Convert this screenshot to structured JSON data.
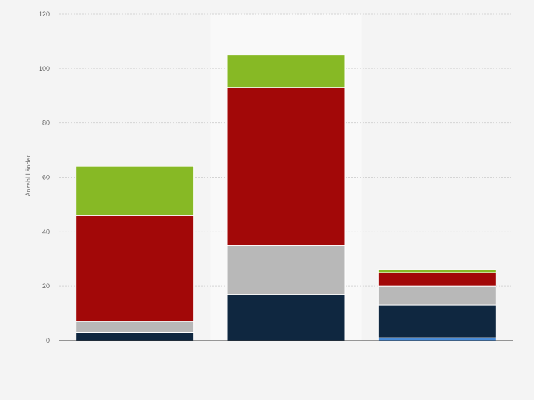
{
  "chart_data": {
    "type": "bar",
    "stacked": true,
    "title": "",
    "xlabel": "",
    "ylabel": "Anzahl Länder",
    "ylim": [
      0,
      120
    ],
    "yticks": [
      0,
      20,
      40,
      60,
      80,
      100,
      120
    ],
    "grid": true,
    "highlighted_category_index": 1,
    "categories": [
      "",
      "",
      ""
    ],
    "series": [
      {
        "color": "#4a8cd8",
        "values": [
          0,
          0,
          1
        ]
      },
      {
        "color": "#0f2740",
        "values": [
          3,
          17,
          12
        ]
      },
      {
        "color": "#b8b8b8",
        "values": [
          4,
          18,
          7
        ]
      },
      {
        "color": "#a20808",
        "values": [
          39,
          58,
          5
        ]
      },
      {
        "color": "#87b925",
        "values": [
          18,
          12,
          1
        ]
      }
    ]
  }
}
